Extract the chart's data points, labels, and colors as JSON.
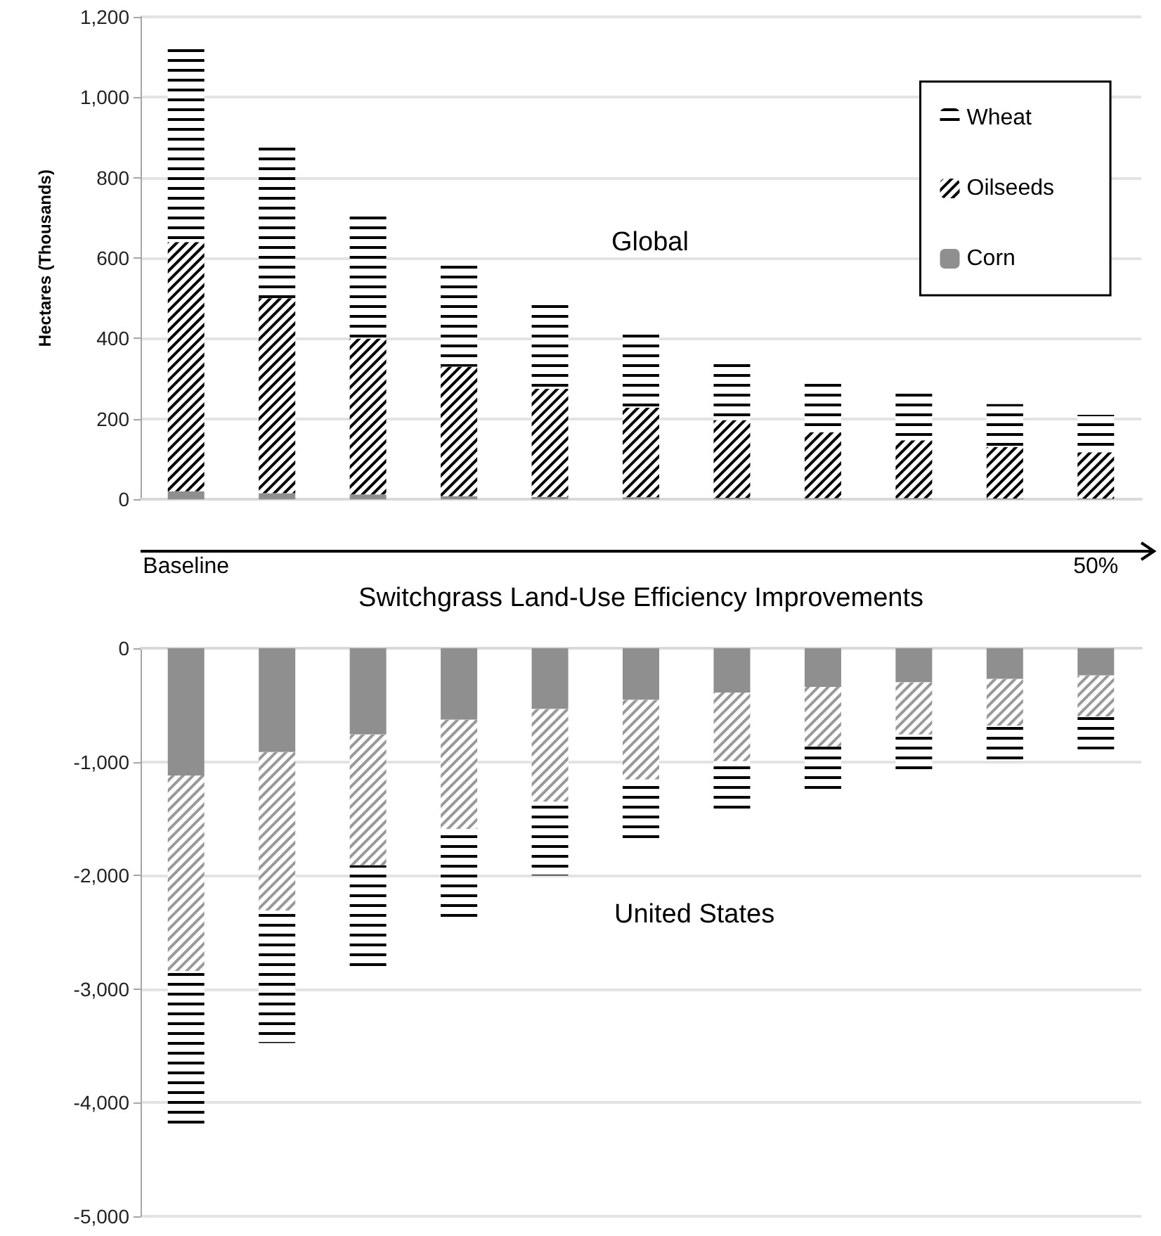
{
  "chart_data": [
    {
      "type": "bar",
      "stacked": true,
      "xlabel": "Switchgrass Land-Use Efficiency Improvements",
      "ylabel": "Hectares (Thousands)",
      "categories": [
        "Baseline",
        null,
        null,
        null,
        null,
        null,
        null,
        null,
        null,
        null,
        "50%"
      ],
      "series": [
        {
          "name": "Corn",
          "color": "#8f8f8f",
          "values": [
            20,
            15,
            12,
            8,
            6,
            5,
            4,
            3,
            3,
            2,
            2
          ]
        },
        {
          "name": "Oilseeds",
          "color": "#000000",
          "values": [
            620,
            485,
            388,
            322,
            269,
            223,
            193,
            164,
            144,
            128,
            115
          ]
        },
        {
          "name": "Wheat",
          "color": "#000000",
          "values": [
            495,
            385,
            315,
            255,
            210,
            185,
            143,
            123,
            120,
            107,
            93
          ]
        }
      ],
      "ylim": [
        0,
        1200
      ],
      "yticks": [
        0,
        200,
        400,
        600,
        800,
        {
          "value": 1000,
          "label": "1,000"
        },
        {
          "value": 1200,
          "label": "1,200"
        }
      ],
      "grid": "y",
      "legend": "top right",
      "annotations": [
        "Global"
      ]
    },
    {
      "type": "bar",
      "stacked": true,
      "categories": [
        null,
        null,
        null,
        null,
        null,
        null,
        null,
        null,
        null,
        null,
        null
      ],
      "series": [
        {
          "color": "#8f8f8f",
          "values": [
            -1120,
            -915,
            -760,
            -630,
            -535,
            -455,
            -390,
            -340,
            -300,
            -270,
            -240
          ]
        },
        {
          "color": "#999999",
          "values": [
            -1720,
            -1395,
            -1150,
            -960,
            -815,
            -700,
            -605,
            -525,
            -460,
            -410,
            -360
          ]
        },
        {
          "color": "#000000",
          "values": [
            -1390,
            -1165,
            -935,
            -790,
            -650,
            -570,
            -460,
            -405,
            -320,
            -310,
            -290
          ]
        }
      ],
      "ylim": [
        -5000,
        0
      ],
      "yticks": [
        {
          "value": -5000,
          "label": "-5,000"
        },
        {
          "value": -4000,
          "label": "-4,000"
        },
        {
          "value": -3000,
          "label": "-3,000"
        },
        {
          "value": -2000,
          "label": "-2,000"
        },
        {
          "value": -1000,
          "label": "-1,000"
        },
        0
      ],
      "grid": "y",
      "tick_labels": "y",
      "annotations": [
        "United States"
      ]
    }
  ]
}
